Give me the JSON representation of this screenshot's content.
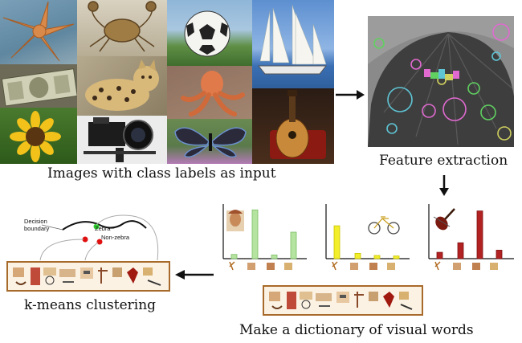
{
  "captions": {
    "input": "Images with class labels as input",
    "features": "Feature extraction",
    "clustering": "k-means clustering",
    "dictionary": "Make a dictionary of visual words"
  },
  "classifier": {
    "decision_boundary": "Decision\nboundary",
    "zebra": "Zebra",
    "non_zebra": "Non-zebra"
  },
  "histograms": [
    {
      "name": "face",
      "color": "#b5e3a0",
      "stroke": "#7cbf66",
      "values": [
        0.08,
        0.92,
        0.07,
        0.5
      ]
    },
    {
      "name": "bicycle",
      "color": "#f2ee2c",
      "stroke": "#c9c300",
      "values": [
        0.62,
        0.1,
        0.06,
        0.05
      ]
    },
    {
      "name": "violin",
      "color": "#b22222",
      "stroke": "#7e1212",
      "values": [
        0.12,
        0.3,
        0.9,
        0.16
      ]
    }
  ],
  "colors": {
    "strip_border": "#a86a2a",
    "strip_bg": "#fbf2e4",
    "arrow": "#111111"
  },
  "icons": [
    "starfish-photo",
    "crab-photo",
    "soccer-ball-photo",
    "sailboat-photo",
    "dollar-bill-photo",
    "leopard-cat-photo",
    "octopus-photo",
    "sunflower-photo",
    "camera-photo",
    "butterfly-photo",
    "mandolin-photo",
    "umbrella-feature-photo"
  ]
}
